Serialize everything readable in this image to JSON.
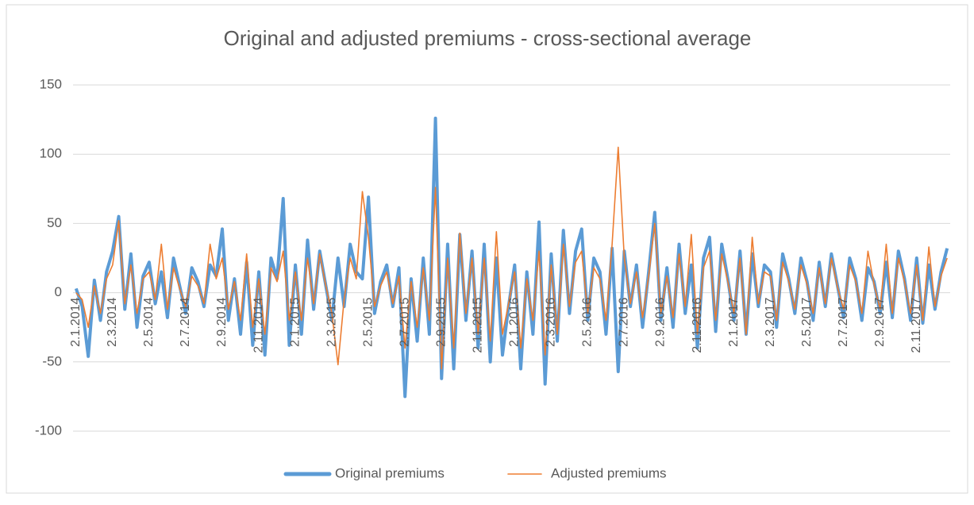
{
  "chart_data": {
    "type": "line",
    "title": "Original and adjusted premiums - cross-sectional average",
    "categories": [
      "2.1.2014",
      null,
      null,
      null,
      null,
      null,
      "2.3.2014",
      null,
      null,
      null,
      null,
      null,
      "2.5.2014",
      null,
      null,
      null,
      null,
      null,
      "2.7.2014",
      null,
      null,
      null,
      null,
      null,
      "2.9.2014",
      null,
      null,
      null,
      null,
      null,
      "2.11.2014",
      null,
      null,
      null,
      null,
      null,
      "2.1.2015",
      null,
      null,
      null,
      null,
      null,
      "2.3.2015",
      null,
      null,
      null,
      null,
      null,
      "2.5.2015",
      null,
      null,
      null,
      null,
      null,
      "2.7.2015",
      null,
      null,
      null,
      null,
      null,
      "2.9.2015",
      null,
      null,
      null,
      null,
      null,
      "2.11.2015",
      null,
      null,
      null,
      null,
      null,
      "2.1.2016",
      null,
      null,
      null,
      null,
      null,
      "2.3.2016",
      null,
      null,
      null,
      null,
      null,
      "2.5.2016",
      null,
      null,
      null,
      null,
      null,
      "2.7.2016",
      null,
      null,
      null,
      null,
      null,
      "2.9.2016",
      null,
      null,
      null,
      null,
      null,
      "2.11.2016",
      null,
      null,
      null,
      null,
      null,
      "2.1.2017",
      null,
      null,
      null,
      null,
      null,
      "2.3.2017",
      null,
      null,
      null,
      null,
      null,
      "2.5.2017",
      null,
      null,
      null,
      null,
      null,
      "2.7.2017",
      null,
      null,
      null,
      null,
      null,
      "2.9.2017",
      null,
      null,
      null,
      null,
      null,
      "2.11.2017",
      null,
      null,
      null,
      null,
      null
    ],
    "series": [
      {
        "name": "Original premiums",
        "color": "#5b9bd5",
        "values": [
          3,
          -10,
          -46,
          9,
          -20,
          15,
          30,
          55,
          -12,
          28,
          -25,
          12,
          22,
          -8,
          15,
          -18,
          25,
          5,
          -15,
          18,
          8,
          -10,
          20,
          12,
          46,
          -20,
          10,
          -30,
          22,
          -38,
          15,
          -45,
          25,
          10,
          68,
          -38,
          20,
          -30,
          38,
          -12,
          30,
          5,
          -20,
          25,
          -10,
          35,
          15,
          10,
          69,
          -15,
          8,
          20,
          -10,
          18,
          -75,
          10,
          -35,
          25,
          -30,
          126,
          -62,
          35,
          -55,
          42,
          -20,
          30,
          -40,
          35,
          -50,
          25,
          -45,
          -10,
          20,
          -55,
          15,
          -30,
          51,
          -66,
          28,
          -35,
          45,
          -15,
          30,
          46,
          -20,
          25,
          15,
          -30,
          32,
          -57,
          30,
          -10,
          20,
          -25,
          15,
          58,
          -20,
          18,
          -25,
          35,
          -15,
          20,
          -40,
          25,
          40,
          -28,
          35,
          10,
          -20,
          30,
          -30,
          28,
          -10,
          20,
          15,
          -25,
          28,
          10,
          -15,
          25,
          8,
          -20,
          22,
          -10,
          28,
          5,
          -18,
          25,
          10,
          -20,
          18,
          8,
          -15,
          22,
          -18,
          30,
          10,
          -20,
          25,
          -22,
          20,
          -12,
          15,
          32
        ]
      },
      {
        "name": "Adjusted premiums",
        "color": "#ed7d31",
        "values": [
          0,
          -5,
          -25,
          5,
          -15,
          10,
          20,
          52,
          -8,
          20,
          -15,
          10,
          15,
          -5,
          35,
          -12,
          18,
          3,
          -10,
          12,
          5,
          -8,
          35,
          10,
          25,
          -12,
          8,
          -20,
          28,
          -25,
          10,
          -30,
          18,
          8,
          30,
          -20,
          15,
          -20,
          25,
          -8,
          28,
          5,
          -15,
          -52,
          -5,
          25,
          10,
          73,
          40,
          -10,
          5,
          15,
          -8,
          12,
          -40,
          8,
          -25,
          18,
          -20,
          76,
          -55,
          25,
          -40,
          43,
          -15,
          25,
          -30,
          25,
          -35,
          44,
          -30,
          -8,
          15,
          -40,
          10,
          -20,
          30,
          -45,
          20,
          -30,
          35,
          -10,
          22,
          30,
          -15,
          18,
          10,
          -20,
          35,
          105,
          25,
          -8,
          15,
          -18,
          12,
          50,
          -15,
          12,
          -18,
          28,
          -10,
          42,
          -30,
          18,
          30,
          -20,
          28,
          8,
          -15,
          25,
          -30,
          40,
          -8,
          15,
          12,
          -20,
          22,
          8,
          -12,
          20,
          6,
          -15,
          18,
          -8,
          25,
          4,
          -12,
          20,
          8,
          -15,
          30,
          6,
          -12,
          35,
          -15,
          25,
          8,
          -15,
          20,
          -20,
          33,
          -10,
          12,
          25
        ]
      }
    ],
    "ylim": [
      -100,
      150
    ],
    "yticks": [
      -100,
      -50,
      0,
      50,
      100,
      150
    ],
    "grid": true
  }
}
